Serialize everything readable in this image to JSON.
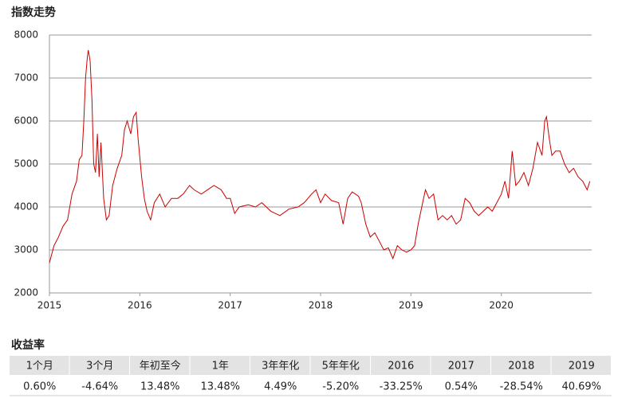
{
  "chart_data": {
    "type": "line",
    "title": "指数走势",
    "color": "#cc0000",
    "grid": true,
    "x": [
      2015.0,
      2015.05,
      2015.1,
      2015.15,
      2015.2,
      2015.25,
      2015.3,
      2015.33,
      2015.36,
      2015.38,
      2015.4,
      2015.42,
      2015.43,
      2015.45,
      2015.47,
      2015.49,
      2015.51,
      2015.53,
      2015.55,
      2015.57,
      2015.6,
      2015.63,
      2015.66,
      2015.7,
      2015.75,
      2015.8,
      2015.83,
      2015.86,
      2015.9,
      2015.93,
      2015.96,
      2015.98,
      2016.02,
      2016.05,
      2016.08,
      2016.12,
      2016.16,
      2016.22,
      2016.28,
      2016.35,
      2016.42,
      2016.48,
      2016.55,
      2016.6,
      2016.68,
      2016.75,
      2016.82,
      2016.9,
      2016.96,
      2017.0,
      2017.05,
      2017.1,
      2017.2,
      2017.28,
      2017.35,
      2017.45,
      2017.55,
      2017.65,
      2017.75,
      2017.82,
      2017.9,
      2017.95,
      2018.0,
      2018.05,
      2018.12,
      2018.2,
      2018.25,
      2018.3,
      2018.35,
      2018.42,
      2018.45,
      2018.5,
      2018.55,
      2018.6,
      2018.65,
      2018.7,
      2018.75,
      2018.8,
      2018.85,
      2018.9,
      2018.95,
      2019.0,
      2019.04,
      2019.08,
      2019.12,
      2019.16,
      2019.2,
      2019.25,
      2019.3,
      2019.35,
      2019.4,
      2019.45,
      2019.5,
      2019.55,
      2019.6,
      2019.65,
      2019.7,
      2019.75,
      2019.8,
      2019.85,
      2019.9,
      2019.95,
      2020.0,
      2020.04,
      2020.08,
      2020.12,
      2020.16,
      2020.2,
      2020.25,
      2020.3,
      2020.35,
      2020.4,
      2020.45,
      2020.48,
      2020.5,
      2020.53,
      2020.56,
      2020.6,
      2020.65,
      2020.7,
      2020.75,
      2020.8,
      2020.85,
      2020.9,
      2020.95,
      2020.98
    ],
    "values": [
      2700,
      3100,
      3300,
      3550,
      3700,
      4300,
      4600,
      5100,
      5200,
      6000,
      7000,
      7500,
      7650,
      7400,
      6500,
      5000,
      4800,
      5700,
      4700,
      5500,
      4200,
      3700,
      3800,
      4500,
      4900,
      5200,
      5800,
      6000,
      5700,
      6100,
      6200,
      5600,
      4700,
      4200,
      3900,
      3700,
      4100,
      4300,
      4000,
      4200,
      4200,
      4300,
      4500,
      4400,
      4300,
      4400,
      4500,
      4400,
      4200,
      4200,
      3850,
      4000,
      4050,
      4000,
      4100,
      3900,
      3800,
      3950,
      4000,
      4100,
      4300,
      4400,
      4100,
      4300,
      4150,
      4100,
      3600,
      4200,
      4350,
      4250,
      4100,
      3600,
      3300,
      3400,
      3200,
      3000,
      3050,
      2800,
      3100,
      3000,
      2950,
      3000,
      3100,
      3600,
      4000,
      4400,
      4200,
      4300,
      3700,
      3800,
      3700,
      3800,
      3600,
      3700,
      4200,
      4100,
      3900,
      3800,
      3900,
      4000,
      3900,
      4100,
      4300,
      4600,
      4200,
      5300,
      4500,
      4600,
      4800,
      4500,
      4900,
      5500,
      5200,
      6000,
      6100,
      5600,
      5200,
      5300,
      5300,
      5000,
      4800,
      4900,
      4700,
      4600,
      4400,
      4600
    ],
    "xlim": [
      2015,
      2021
    ],
    "xticks": [
      2015,
      2016,
      2017,
      2018,
      2019,
      2020
    ],
    "ylim": [
      2000,
      8000
    ],
    "yticks": [
      2000,
      3000,
      4000,
      5000,
      6000,
      7000,
      8000
    ]
  },
  "returns": {
    "title": "收益率",
    "header": [
      "1个月",
      "3个月",
      "年初至今",
      "1年",
      "3年年化",
      "5年年化",
      "2016",
      "2017",
      "2018",
      "2019"
    ],
    "values": [
      "0.60%",
      "-4.64%",
      "13.48%",
      "13.48%",
      "4.49%",
      "-5.20%",
      "-33.25%",
      "0.54%",
      "-28.54%",
      "40.69%"
    ]
  }
}
